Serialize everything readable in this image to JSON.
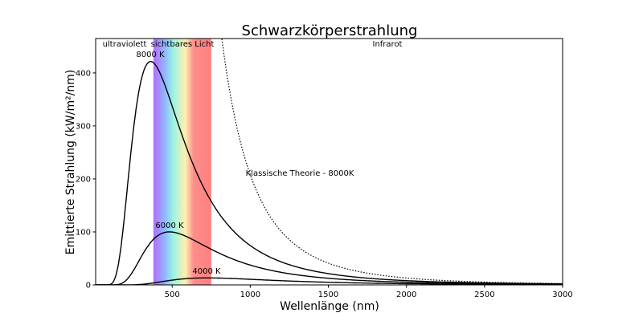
{
  "chart_data": {
    "type": "line",
    "title": "Schwarzkörperstrahlung",
    "xlabel": "Wellenlänge (nm)",
    "ylabel": "Emittierte Strahlung (kW/m²/nm)",
    "xlim": [
      10,
      3000
    ],
    "ylim": [
      0,
      465
    ],
    "x_ticks": [
      500,
      1000,
      1500,
      2000,
      2500,
      3000
    ],
    "y_ticks": [
      0,
      100,
      200,
      300,
      400
    ],
    "grid": false,
    "series": [
      {
        "label": "8000 K",
        "model": "planck",
        "temperature_K": 8000,
        "peak": {
          "x": 362,
          "y": 423
        },
        "style": "solid",
        "color": "#000000"
      },
      {
        "label": "6000 K",
        "model": "planck",
        "temperature_K": 6000,
        "peak": {
          "x": 483,
          "y": 100
        },
        "style": "solid",
        "color": "#000000"
      },
      {
        "label": "4000 K",
        "model": "planck",
        "temperature_K": 4000,
        "peak": {
          "x": 724,
          "y": 13
        },
        "style": "solid",
        "color": "#000000"
      },
      {
        "label": "Klassische Theorie - 8000K",
        "model": "rayleigh-jeans",
        "temperature_K": 8000,
        "sample": {
          "x": 1000,
          "y": 208
        },
        "style": "dotted",
        "color": "#000000"
      }
    ],
    "regions": [
      {
        "label": "ultraviolett",
        "range": [
          10,
          380
        ]
      },
      {
        "label": "sichtbares Licht",
        "range": [
          380,
          750
        ],
        "colors": [
          "#b36bff",
          "#8fb8ff",
          "#9cf5e0",
          "#fff0b0",
          "#ff8c8c",
          "#ff8080"
        ]
      },
      {
        "label": "Infrarot",
        "range": [
          750,
          3000
        ]
      }
    ]
  }
}
